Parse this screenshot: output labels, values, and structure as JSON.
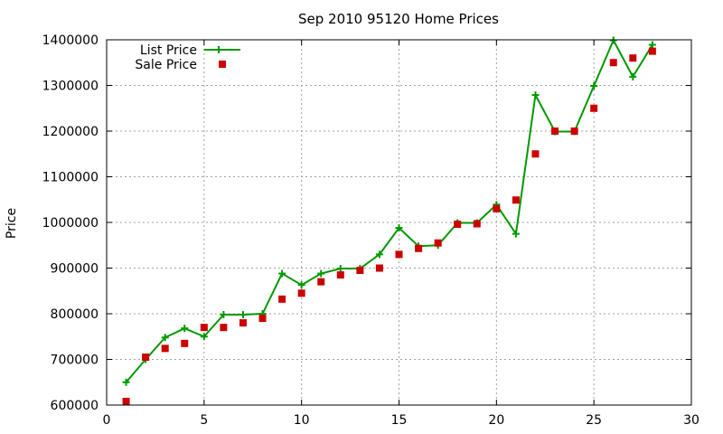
{
  "chart_data": {
    "type": "line",
    "title": "Sep 2010 95120 Home Prices",
    "xlabel": "",
    "ylabel": "Price",
    "xlim": [
      0,
      30
    ],
    "ylim": [
      600000,
      1400000
    ],
    "x_ticks": [
      0,
      5,
      10,
      15,
      20,
      25,
      30
    ],
    "y_ticks": [
      600000,
      700000,
      800000,
      900000,
      1000000,
      1100000,
      1200000,
      1300000,
      1400000
    ],
    "grid": true,
    "legend_position": "top-left",
    "series": [
      {
        "name": "List Price",
        "style": "line-with-plus-markers",
        "color": "#009900",
        "x": [
          1,
          2,
          3,
          4,
          5,
          6,
          7,
          8,
          9,
          10,
          11,
          12,
          13,
          14,
          15,
          16,
          17,
          18,
          19,
          20,
          21,
          22,
          23,
          24,
          25,
          26,
          27,
          28
        ],
        "values": [
          650000,
          700000,
          748000,
          768000,
          750000,
          798000,
          798000,
          800000,
          888000,
          863000,
          888000,
          899000,
          899000,
          930000,
          988000,
          948000,
          950000,
          999000,
          999000,
          1039000,
          975000,
          1279000,
          1199000,
          1199000,
          1299000,
          1399000,
          1319000,
          1389000
        ]
      },
      {
        "name": "Sale Price",
        "style": "square-markers",
        "color": "#cc0000",
        "x": [
          1,
          2,
          3,
          4,
          5,
          6,
          7,
          8,
          9,
          10,
          11,
          12,
          13,
          14,
          15,
          16,
          17,
          18,
          19,
          20,
          21,
          22,
          23,
          24,
          25,
          26,
          27,
          28
        ],
        "values": [
          608000,
          705000,
          724000,
          735000,
          770000,
          770000,
          780000,
          790000,
          832000,
          845000,
          870000,
          885000,
          895000,
          900000,
          930000,
          943000,
          955000,
          996000,
          997000,
          1030000,
          1049000,
          1150000,
          1200000,
          1200000,
          1250000,
          1350000,
          1360000,
          1375000
        ]
      }
    ]
  }
}
